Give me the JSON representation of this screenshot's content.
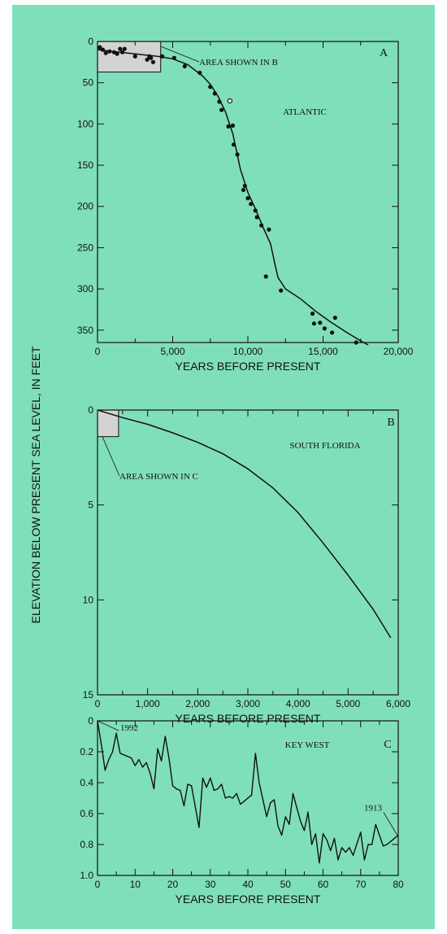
{
  "ylabel": "ELEVATION BELOW PRESENT SEA LEVEL, IN FEET",
  "chart_data": [
    {
      "panel": "A",
      "title": "ATLANTIC",
      "type": "scatter",
      "xlabel": "YEARS BEFORE PRESENT",
      "xlim": [
        0,
        20000
      ],
      "ylim": [
        0,
        365
      ],
      "y_inverted": true,
      "xticks": [
        0,
        5000,
        10000,
        15000,
        20000
      ],
      "xtick_labels": [
        "0",
        "5,000",
        "10,000",
        "15,000",
        "20,000"
      ],
      "yticks": [
        0,
        50,
        100,
        150,
        200,
        250,
        300,
        350
      ],
      "ytick_labels": [
        "0",
        "50",
        "100",
        "150",
        "200",
        "250",
        "300",
        "350"
      ],
      "inset_label": "AREA SHOWN IN B",
      "inset_box": {
        "x0": 0,
        "x1": 4200,
        "y0": 0,
        "y1": 37
      },
      "points": [
        {
          "x": 150,
          "y": 7
        },
        {
          "x": 350,
          "y": 10
        },
        {
          "x": 550,
          "y": 14
        },
        {
          "x": 800,
          "y": 12
        },
        {
          "x": 1100,
          "y": 13
        },
        {
          "x": 1300,
          "y": 15
        },
        {
          "x": 1500,
          "y": 9
        },
        {
          "x": 1650,
          "y": 13
        },
        {
          "x": 1800,
          "y": 9
        },
        {
          "x": 2500,
          "y": 18
        },
        {
          "x": 3300,
          "y": 22
        },
        {
          "x": 3450,
          "y": 18
        },
        {
          "x": 3550,
          "y": 20
        },
        {
          "x": 3700,
          "y": 25
        },
        {
          "x": 4300,
          "y": 18
        },
        {
          "x": 5100,
          "y": 20
        },
        {
          "x": 5800,
          "y": 30
        },
        {
          "x": 6800,
          "y": 38
        },
        {
          "x": 7500,
          "y": 55
        },
        {
          "x": 7800,
          "y": 63
        },
        {
          "x": 8100,
          "y": 73
        },
        {
          "x": 8250,
          "y": 83
        },
        {
          "x": 8700,
          "y": 103
        },
        {
          "x": 9000,
          "y": 102
        },
        {
          "x": 9050,
          "y": 125
        },
        {
          "x": 9300,
          "y": 137
        },
        {
          "x": 9700,
          "y": 180
        },
        {
          "x": 9800,
          "y": 175
        },
        {
          "x": 10000,
          "y": 190
        },
        {
          "x": 10200,
          "y": 197
        },
        {
          "x": 10500,
          "y": 205
        },
        {
          "x": 10600,
          "y": 213
        },
        {
          "x": 10900,
          "y": 223
        },
        {
          "x": 11200,
          "y": 285
        },
        {
          "x": 11400,
          "y": 228
        },
        {
          "x": 12200,
          "y": 302
        },
        {
          "x": 14300,
          "y": 330
        },
        {
          "x": 14400,
          "y": 342
        },
        {
          "x": 14800,
          "y": 341
        },
        {
          "x": 15100,
          "y": 348
        },
        {
          "x": 15600,
          "y": 353
        },
        {
          "x": 15800,
          "y": 335
        },
        {
          "x": 17200,
          "y": 365
        }
      ],
      "outlier_points": [
        {
          "x": 8800,
          "y": 72
        }
      ],
      "curve": [
        {
          "x": 0,
          "y": 10
        },
        {
          "x": 1000,
          "y": 12
        },
        {
          "x": 2000,
          "y": 14
        },
        {
          "x": 3000,
          "y": 16
        },
        {
          "x": 4000,
          "y": 18
        },
        {
          "x": 5000,
          "y": 21
        },
        {
          "x": 6000,
          "y": 28
        },
        {
          "x": 7000,
          "y": 42
        },
        {
          "x": 7500,
          "y": 52
        },
        {
          "x": 8000,
          "y": 66
        },
        {
          "x": 8500,
          "y": 85
        },
        {
          "x": 9000,
          "y": 112
        },
        {
          "x": 9500,
          "y": 155
        },
        {
          "x": 10000,
          "y": 183
        },
        {
          "x": 10500,
          "y": 203
        },
        {
          "x": 11000,
          "y": 225
        },
        {
          "x": 11500,
          "y": 245
        },
        {
          "x": 11800,
          "y": 270
        },
        {
          "x": 12000,
          "y": 286
        },
        {
          "x": 12500,
          "y": 300
        },
        {
          "x": 13500,
          "y": 312
        },
        {
          "x": 14500,
          "y": 327
        },
        {
          "x": 15500,
          "y": 340
        },
        {
          "x": 16500,
          "y": 352
        },
        {
          "x": 17500,
          "y": 363
        },
        {
          "x": 18000,
          "y": 368
        }
      ]
    },
    {
      "panel": "B",
      "title": "SOUTH FLORIDA",
      "type": "line",
      "xlabel": "YEARS BEFORE PRESENT",
      "xlim": [
        0,
        6000
      ],
      "ylim": [
        0,
        15
      ],
      "y_inverted": true,
      "xticks": [
        0,
        1000,
        2000,
        3000,
        4000,
        5000,
        6000
      ],
      "xtick_labels": [
        "0",
        "1,000",
        "2,000",
        "3,000",
        "4,000",
        "5,000",
        "6,000"
      ],
      "yticks": [
        0,
        5,
        10,
        15
      ],
      "ytick_labels": [
        "0",
        "5",
        "10",
        "15"
      ],
      "inset_label": "AREA SHOWN IN C",
      "inset_box": {
        "x0": 0,
        "x1": 420,
        "y0": 0,
        "y1": 1.4
      },
      "curve": [
        {
          "x": 0,
          "y": 0
        },
        {
          "x": 500,
          "y": 0.4
        },
        {
          "x": 1000,
          "y": 0.75
        },
        {
          "x": 1500,
          "y": 1.2
        },
        {
          "x": 2000,
          "y": 1.7
        },
        {
          "x": 2500,
          "y": 2.3
        },
        {
          "x": 3000,
          "y": 3.1
        },
        {
          "x": 3500,
          "y": 4.1
        },
        {
          "x": 4000,
          "y": 5.4
        },
        {
          "x": 4500,
          "y": 7.0
        },
        {
          "x": 5000,
          "y": 8.7
        },
        {
          "x": 5500,
          "y": 10.5
        },
        {
          "x": 5850,
          "y": 12.0
        }
      ]
    },
    {
      "panel": "C",
      "title": "KEY WEST",
      "type": "line",
      "xlabel": "YEARS BEFORE PRESENT",
      "xlim": [
        0,
        80
      ],
      "ylim": [
        0,
        1.0
      ],
      "y_inverted": true,
      "xticks": [
        0,
        10,
        20,
        30,
        40,
        50,
        60,
        70,
        80
      ],
      "xtick_labels": [
        "0",
        "10",
        "20",
        "30",
        "40",
        "50",
        "60",
        "70",
        "80"
      ],
      "yticks": [
        0,
        0.2,
        0.4,
        0.6,
        0.8,
        1.0
      ],
      "ytick_labels": [
        "0",
        "0.2",
        "0.4",
        "0.6",
        "0.8",
        "1.0"
      ],
      "annotations": [
        {
          "text": "1992",
          "x": 0,
          "y": 0
        },
        {
          "text": "1913",
          "x": 80,
          "y": 0.75
        }
      ],
      "series": [
        {
          "x": 0,
          "y": 0
        },
        {
          "x": 1,
          "y": 0.15
        },
        {
          "x": 2,
          "y": 0.32
        },
        {
          "x": 3,
          "y": 0.25
        },
        {
          "x": 4,
          "y": 0.2
        },
        {
          "x": 5,
          "y": 0.08
        },
        {
          "x": 6,
          "y": 0.21
        },
        {
          "x": 7,
          "y": 0.22
        },
        {
          "x": 8,
          "y": 0.23
        },
        {
          "x": 9,
          "y": 0.24
        },
        {
          "x": 10,
          "y": 0.29
        },
        {
          "x": 11,
          "y": 0.25
        },
        {
          "x": 12,
          "y": 0.3
        },
        {
          "x": 13,
          "y": 0.27
        },
        {
          "x": 14,
          "y": 0.34
        },
        {
          "x": 15,
          "y": 0.44
        },
        {
          "x": 16,
          "y": 0.18
        },
        {
          "x": 17,
          "y": 0.26
        },
        {
          "x": 18,
          "y": 0.1
        },
        {
          "x": 19,
          "y": 0.24
        },
        {
          "x": 20,
          "y": 0.42
        },
        {
          "x": 21,
          "y": 0.44
        },
        {
          "x": 22,
          "y": 0.45
        },
        {
          "x": 23,
          "y": 0.55
        },
        {
          "x": 24,
          "y": 0.41
        },
        {
          "x": 25,
          "y": 0.42
        },
        {
          "x": 27,
          "y": 0.69
        },
        {
          "x": 28,
          "y": 0.37
        },
        {
          "x": 29,
          "y": 0.43
        },
        {
          "x": 30,
          "y": 0.37
        },
        {
          "x": 31,
          "y": 0.45
        },
        {
          "x": 32,
          "y": 0.44
        },
        {
          "x": 33,
          "y": 0.41
        },
        {
          "x": 34,
          "y": 0.5
        },
        {
          "x": 35,
          "y": 0.49
        },
        {
          "x": 36,
          "y": 0.5
        },
        {
          "x": 37,
          "y": 0.47
        },
        {
          "x": 38,
          "y": 0.54
        },
        {
          "x": 39,
          "y": 0.52
        },
        {
          "x": 41,
          "y": 0.48
        },
        {
          "x": 42,
          "y": 0.21
        },
        {
          "x": 43,
          "y": 0.4
        },
        {
          "x": 45,
          "y": 0.62
        },
        {
          "x": 46,
          "y": 0.53
        },
        {
          "x": 47,
          "y": 0.51
        },
        {
          "x": 48,
          "y": 0.68
        },
        {
          "x": 49,
          "y": 0.74
        },
        {
          "x": 50,
          "y": 0.62
        },
        {
          "x": 51,
          "y": 0.67
        },
        {
          "x": 52,
          "y": 0.47
        },
        {
          "x": 53,
          "y": 0.56
        },
        {
          "x": 54,
          "y": 0.65
        },
        {
          "x": 55,
          "y": 0.71
        },
        {
          "x": 56,
          "y": 0.59
        },
        {
          "x": 57,
          "y": 0.8
        },
        {
          "x": 58,
          "y": 0.73
        },
        {
          "x": 59,
          "y": 0.92
        },
        {
          "x": 60,
          "y": 0.73
        },
        {
          "x": 61,
          "y": 0.77
        },
        {
          "x": 62,
          "y": 0.84
        },
        {
          "x": 63,
          "y": 0.76
        },
        {
          "x": 64,
          "y": 0.9
        },
        {
          "x": 65,
          "y": 0.82
        },
        {
          "x": 66,
          "y": 0.85
        },
        {
          "x": 67,
          "y": 0.82
        },
        {
          "x": 68,
          "y": 0.87
        },
        {
          "x": 70,
          "y": 0.72
        },
        {
          "x": 71,
          "y": 0.9
        },
        {
          "x": 72,
          "y": 0.8
        },
        {
          "x": 73,
          "y": 0.8
        },
        {
          "x": 74,
          "y": 0.67
        },
        {
          "x": 75,
          "y": 0.74
        },
        {
          "x": 76,
          "y": 0.81
        },
        {
          "x": 77,
          "y": 0.8
        },
        {
          "x": 78,
          "y": 0.78
        },
        {
          "x": 80,
          "y": 0.74
        }
      ]
    }
  ],
  "colors": {
    "background": "#80dfbb",
    "inset_fill": "#d3d3d3",
    "ink": "#111111"
  }
}
